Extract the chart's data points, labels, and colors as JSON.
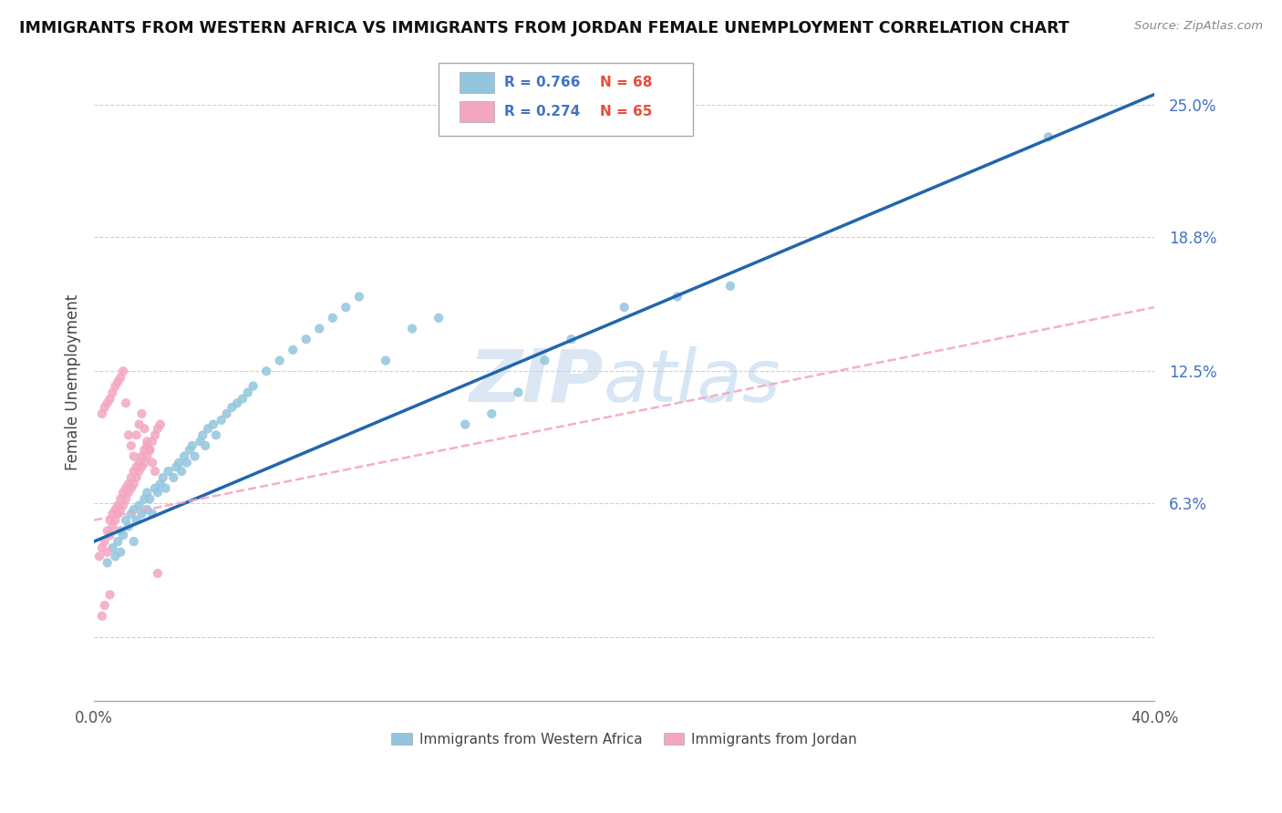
{
  "title": "IMMIGRANTS FROM WESTERN AFRICA VS IMMIGRANTS FROM JORDAN FEMALE UNEMPLOYMENT CORRELATION CHART",
  "source": "Source: ZipAtlas.com",
  "ylabel": "Female Unemployment",
  "x_range": [
    0.0,
    0.4
  ],
  "y_range": [
    -0.03,
    0.27
  ],
  "blue_R": 0.766,
  "blue_N": 68,
  "pink_R": 0.274,
  "pink_N": 65,
  "blue_color": "#92c5de",
  "pink_color": "#f4a6c0",
  "blue_line_color": "#2166ac",
  "pink_line_color": "#f4a6c0",
  "legend_label_blue": "Immigrants from Western Africa",
  "legend_label_pink": "Immigrants from Jordan",
  "watermark_zip": "ZIP",
  "watermark_atlas": "atlas",
  "grid_color": "#d0d0d0",
  "blue_line_x0": 0.0,
  "blue_line_y0": 0.045,
  "blue_line_x1": 0.4,
  "blue_line_y1": 0.255,
  "pink_line_x0": 0.0,
  "pink_line_y0": 0.055,
  "pink_line_x1": 0.4,
  "pink_line_y1": 0.155,
  "blue_scatter_x": [
    0.005,
    0.007,
    0.008,
    0.009,
    0.01,
    0.01,
    0.011,
    0.012,
    0.013,
    0.014,
    0.015,
    0.015,
    0.016,
    0.017,
    0.018,
    0.019,
    0.02,
    0.02,
    0.021,
    0.022,
    0.023,
    0.024,
    0.025,
    0.026,
    0.027,
    0.028,
    0.03,
    0.031,
    0.032,
    0.033,
    0.034,
    0.035,
    0.036,
    0.037,
    0.038,
    0.04,
    0.041,
    0.042,
    0.043,
    0.045,
    0.046,
    0.048,
    0.05,
    0.052,
    0.054,
    0.056,
    0.058,
    0.06,
    0.065,
    0.07,
    0.075,
    0.08,
    0.085,
    0.09,
    0.095,
    0.1,
    0.11,
    0.12,
    0.13,
    0.14,
    0.15,
    0.16,
    0.17,
    0.18,
    0.2,
    0.22,
    0.24,
    0.36
  ],
  "blue_scatter_y": [
    0.035,
    0.042,
    0.038,
    0.045,
    0.04,
    0.05,
    0.048,
    0.055,
    0.052,
    0.058,
    0.045,
    0.06,
    0.055,
    0.062,
    0.058,
    0.065,
    0.06,
    0.068,
    0.065,
    0.058,
    0.07,
    0.068,
    0.072,
    0.075,
    0.07,
    0.078,
    0.075,
    0.08,
    0.082,
    0.078,
    0.085,
    0.082,
    0.088,
    0.09,
    0.085,
    0.092,
    0.095,
    0.09,
    0.098,
    0.1,
    0.095,
    0.102,
    0.105,
    0.108,
    0.11,
    0.112,
    0.115,
    0.118,
    0.125,
    0.13,
    0.135,
    0.14,
    0.145,
    0.15,
    0.155,
    0.16,
    0.13,
    0.145,
    0.15,
    0.1,
    0.105,
    0.115,
    0.13,
    0.14,
    0.155,
    0.16,
    0.165,
    0.235
  ],
  "pink_scatter_x": [
    0.002,
    0.003,
    0.004,
    0.005,
    0.005,
    0.006,
    0.006,
    0.007,
    0.007,
    0.008,
    0.008,
    0.009,
    0.009,
    0.01,
    0.01,
    0.011,
    0.011,
    0.012,
    0.012,
    0.013,
    0.013,
    0.014,
    0.014,
    0.015,
    0.015,
    0.016,
    0.016,
    0.017,
    0.017,
    0.018,
    0.018,
    0.019,
    0.019,
    0.02,
    0.02,
    0.021,
    0.022,
    0.023,
    0.024,
    0.025,
    0.003,
    0.004,
    0.005,
    0.006,
    0.007,
    0.008,
    0.009,
    0.01,
    0.011,
    0.012,
    0.013,
    0.014,
    0.015,
    0.016,
    0.017,
    0.018,
    0.019,
    0.02,
    0.021,
    0.022,
    0.023,
    0.024,
    0.006,
    0.004,
    0.003
  ],
  "pink_scatter_y": [
    0.038,
    0.042,
    0.045,
    0.04,
    0.05,
    0.048,
    0.055,
    0.052,
    0.058,
    0.055,
    0.06,
    0.058,
    0.062,
    0.06,
    0.065,
    0.062,
    0.068,
    0.065,
    0.07,
    0.068,
    0.072,
    0.07,
    0.075,
    0.072,
    0.078,
    0.075,
    0.08,
    0.078,
    0.082,
    0.08,
    0.085,
    0.082,
    0.088,
    0.085,
    0.09,
    0.088,
    0.092,
    0.095,
    0.098,
    0.1,
    0.105,
    0.108,
    0.11,
    0.112,
    0.115,
    0.118,
    0.12,
    0.122,
    0.125,
    0.11,
    0.095,
    0.09,
    0.085,
    0.095,
    0.1,
    0.105,
    0.098,
    0.092,
    0.088,
    0.082,
    0.078,
    0.03,
    0.02,
    0.015,
    0.01
  ]
}
